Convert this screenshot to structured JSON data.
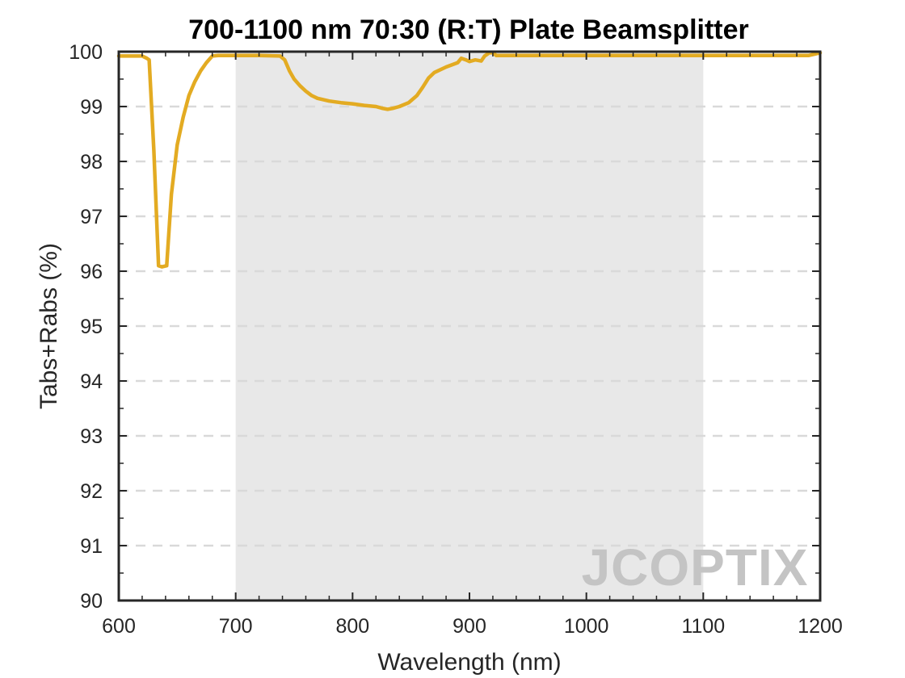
{
  "chart_data": {
    "type": "line",
    "title": "700-1100 nm 70:30 (R:T) Plate Beamsplitter",
    "xlabel": "Wavelength (nm)",
    "ylabel": "Tabs+Rabs (%)",
    "xlim": [
      600,
      1200
    ],
    "ylim": [
      90,
      100
    ],
    "xticks": [
      600,
      700,
      800,
      900,
      1000,
      1100,
      1200
    ],
    "yticks": [
      90,
      91,
      92,
      93,
      94,
      95,
      96,
      97,
      98,
      99,
      100
    ],
    "grid": "horizontal dashed",
    "shaded_band": {
      "x": [
        700,
        1100
      ],
      "color": "#e8e8e8"
    },
    "series": [
      {
        "color": "#e3ab22",
        "x": [
          600,
          620,
          624,
          626,
          630,
          634,
          637,
          641,
          645,
          650,
          655,
          660,
          665,
          670,
          675,
          680,
          685,
          690,
          700,
          720,
          738,
          742,
          746,
          750,
          755,
          760,
          765,
          770,
          780,
          790,
          800,
          810,
          820,
          825,
          830,
          835,
          840,
          848,
          855,
          860,
          865,
          870,
          880,
          890,
          893,
          897,
          900,
          905,
          910,
          913,
          917,
          920,
          923,
          930,
          950,
          1000,
          1100,
          1150,
          1190,
          1200
        ],
        "y": [
          99.92,
          99.92,
          99.88,
          99.85,
          98.2,
          96.1,
          96.08,
          96.1,
          97.4,
          98.3,
          98.8,
          99.2,
          99.45,
          99.65,
          99.8,
          99.92,
          99.93,
          99.93,
          99.93,
          99.93,
          99.92,
          99.85,
          99.65,
          99.5,
          99.38,
          99.28,
          99.2,
          99.15,
          99.1,
          99.07,
          99.05,
          99.02,
          99.0,
          98.97,
          98.95,
          98.97,
          99.0,
          99.07,
          99.2,
          99.35,
          99.52,
          99.62,
          99.72,
          99.8,
          99.88,
          99.85,
          99.82,
          99.85,
          99.83,
          99.92,
          99.98,
          99.98,
          99.93,
          99.93,
          99.93,
          99.93,
          99.93,
          99.93,
          99.93,
          99.98
        ]
      }
    ],
    "watermark": "JCOPTIX"
  }
}
